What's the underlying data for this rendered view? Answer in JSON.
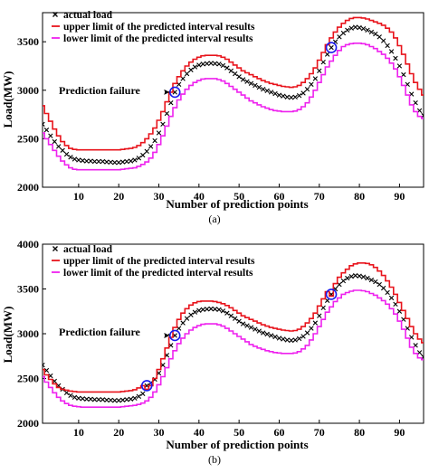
{
  "chart_data": [
    {
      "type": "line",
      "caption": "(a)",
      "xlabel": "Number of prediction points",
      "ylabel": "Load(MW)",
      "xlim": [
        1,
        96
      ],
      "ylim": [
        2000,
        3800
      ],
      "xticks": [
        10,
        20,
        30,
        40,
        50,
        60,
        70,
        80,
        90
      ],
      "yticks": [
        2000,
        2500,
        3000,
        3500
      ],
      "legend_position": "top-left",
      "annotation": "Prediction failure",
      "failure_points": [
        [
          34,
          2980
        ],
        [
          73,
          3440
        ]
      ],
      "series": [
        {
          "name": "actual load",
          "color": "#000000",
          "style": "x-markers",
          "values": [
            2650,
            2590,
            2530,
            2470,
            2420,
            2380,
            2340,
            2310,
            2290,
            2280,
            2275,
            2270,
            2270,
            2265,
            2265,
            2265,
            2260,
            2258,
            2255,
            2255,
            2260,
            2265,
            2270,
            2280,
            2300,
            2330,
            2370,
            2420,
            2480,
            2560,
            2650,
            2760,
            2870,
            2980,
            3060,
            3120,
            3170,
            3210,
            3240,
            3260,
            3270,
            3275,
            3278,
            3275,
            3270,
            3255,
            3230,
            3200,
            3170,
            3140,
            3110,
            3090,
            3070,
            3050,
            3030,
            3010,
            2995,
            2980,
            2965,
            2950,
            2940,
            2930,
            2925,
            2930,
            2945,
            2970,
            3010,
            3060,
            3120,
            3200,
            3290,
            3370,
            3440,
            3500,
            3550,
            3590,
            3620,
            3640,
            3650,
            3645,
            3635,
            3620,
            3600,
            3580,
            3550,
            3510,
            3460,
            3400,
            3330,
            3250,
            3160,
            3060,
            2960,
            2870,
            2790,
            2740
          ]
        },
        {
          "name": "upper limit of the predicted interval results",
          "color": "#e8141c",
          "style": "step",
          "values": [
            2840,
            2760,
            2680,
            2600,
            2530,
            2470,
            2430,
            2400,
            2390,
            2385,
            2385,
            2385,
            2385,
            2385,
            2385,
            2385,
            2385,
            2385,
            2385,
            2385,
            2390,
            2395,
            2400,
            2410,
            2430,
            2460,
            2500,
            2550,
            2610,
            2690,
            2780,
            2880,
            2980,
            3070,
            3140,
            3200,
            3250,
            3290,
            3320,
            3340,
            3355,
            3360,
            3360,
            3360,
            3355,
            3340,
            3320,
            3290,
            3260,
            3230,
            3200,
            3180,
            3160,
            3140,
            3120,
            3100,
            3085,
            3070,
            3060,
            3050,
            3040,
            3035,
            3030,
            3035,
            3050,
            3080,
            3120,
            3170,
            3230,
            3310,
            3390,
            3470,
            3540,
            3600,
            3650,
            3690,
            3720,
            3740,
            3750,
            3750,
            3745,
            3735,
            3720,
            3705,
            3690,
            3670,
            3640,
            3600,
            3540,
            3460,
            3370,
            3270,
            3170,
            3080,
            3010,
            2950
          ]
        },
        {
          "name": "lower limit of the predicted interval results",
          "color": "#ee22ee",
          "style": "step",
          "values": [
            2560,
            2500,
            2440,
            2380,
            2320,
            2270,
            2230,
            2200,
            2185,
            2180,
            2180,
            2180,
            2180,
            2180,
            2180,
            2180,
            2180,
            2180,
            2180,
            2180,
            2185,
            2190,
            2195,
            2200,
            2215,
            2235,
            2260,
            2300,
            2360,
            2440,
            2530,
            2630,
            2730,
            2820,
            2900,
            2960,
            3010,
            3050,
            3080,
            3100,
            3115,
            3120,
            3120,
            3120,
            3110,
            3095,
            3070,
            3040,
            3010,
            2980,
            2950,
            2920,
            2890,
            2870,
            2850,
            2830,
            2815,
            2800,
            2790,
            2785,
            2780,
            2780,
            2780,
            2785,
            2800,
            2830,
            2870,
            2930,
            3000,
            3080,
            3160,
            3240,
            3300,
            3360,
            3410,
            3450,
            3470,
            3480,
            3485,
            3485,
            3480,
            3470,
            3450,
            3430,
            3400,
            3370,
            3330,
            3280,
            3220,
            3140,
            3050,
            2950,
            2850,
            2780,
            2730,
            2710
          ]
        }
      ]
    },
    {
      "type": "line",
      "caption": "(b)",
      "xlabel": "Number of prediction points",
      "ylabel": "Load(MW)",
      "xlim": [
        1,
        96
      ],
      "ylim": [
        2000,
        4000
      ],
      "xticks": [
        10,
        20,
        30,
        40,
        50,
        60,
        70,
        80,
        90
      ],
      "yticks": [
        2000,
        2500,
        3000,
        3500,
        4000
      ],
      "legend_position": "top-left",
      "annotation": "Prediction failure",
      "failure_points": [
        [
          27,
          2420
        ],
        [
          34,
          2980
        ],
        [
          73,
          3440
        ]
      ],
      "series": [
        {
          "name": "actual load",
          "color": "#000000",
          "style": "x-markers",
          "values": [
            2650,
            2590,
            2530,
            2470,
            2420,
            2380,
            2340,
            2310,
            2290,
            2280,
            2275,
            2270,
            2270,
            2265,
            2265,
            2265,
            2260,
            2258,
            2255,
            2255,
            2260,
            2265,
            2270,
            2280,
            2300,
            2330,
            2420,
            2450,
            2490,
            2560,
            2650,
            2760,
            2870,
            2980,
            3060,
            3120,
            3170,
            3210,
            3240,
            3260,
            3270,
            3275,
            3278,
            3275,
            3270,
            3255,
            3230,
            3200,
            3170,
            3140,
            3110,
            3090,
            3070,
            3050,
            3030,
            3010,
            2995,
            2980,
            2965,
            2950,
            2940,
            2930,
            2925,
            2930,
            2945,
            2970,
            3010,
            3060,
            3120,
            3200,
            3290,
            3370,
            3440,
            3500,
            3550,
            3590,
            3620,
            3640,
            3650,
            3645,
            3635,
            3620,
            3600,
            3580,
            3550,
            3510,
            3460,
            3400,
            3330,
            3250,
            3160,
            3060,
            2960,
            2870,
            2790,
            2740
          ]
        },
        {
          "name": "upper limit of the predicted interval results",
          "color": "#e8141c",
          "style": "step",
          "values": [
            2600,
            2540,
            2490,
            2440,
            2400,
            2380,
            2370,
            2360,
            2355,
            2350,
            2350,
            2350,
            2350,
            2350,
            2350,
            2350,
            2350,
            2350,
            2350,
            2350,
            2355,
            2360,
            2365,
            2375,
            2395,
            2420,
            2380,
            2420,
            2500,
            2600,
            2720,
            2840,
            2960,
            3070,
            3160,
            3230,
            3280,
            3320,
            3345,
            3360,
            3365,
            3365,
            3365,
            3360,
            3350,
            3335,
            3315,
            3290,
            3260,
            3230,
            3200,
            3180,
            3160,
            3140,
            3120,
            3100,
            3085,
            3070,
            3060,
            3050,
            3040,
            3035,
            3030,
            3035,
            3050,
            3080,
            3120,
            3170,
            3230,
            3310,
            3390,
            3470,
            3420,
            3560,
            3630,
            3680,
            3720,
            3760,
            3780,
            3790,
            3790,
            3785,
            3770,
            3740,
            3700,
            3650,
            3590,
            3520,
            3440,
            3350,
            3260,
            3170,
            3080,
            3000,
            2940,
            2900
          ]
        },
        {
          "name": "lower limit of the predicted interval results",
          "color": "#ee22ee",
          "style": "step",
          "values": [
            2520,
            2460,
            2400,
            2340,
            2290,
            2250,
            2220,
            2200,
            2190,
            2185,
            2180,
            2180,
            2180,
            2180,
            2180,
            2180,
            2180,
            2180,
            2180,
            2180,
            2185,
            2190,
            2195,
            2200,
            2210,
            2225,
            2250,
            2290,
            2350,
            2430,
            2520,
            2620,
            2720,
            2810,
            2890,
            2950,
            3000,
            3040,
            3070,
            3090,
            3105,
            3110,
            3110,
            3110,
            3100,
            3085,
            3060,
            3030,
            3000,
            2970,
            2940,
            2910,
            2880,
            2860,
            2840,
            2825,
            2810,
            2800,
            2790,
            2785,
            2780,
            2780,
            2780,
            2785,
            2800,
            2830,
            2870,
            2930,
            3000,
            3080,
            3160,
            3240,
            3300,
            3360,
            3400,
            3440,
            3460,
            3475,
            3485,
            3485,
            3480,
            3470,
            3450,
            3430,
            3400,
            3370,
            3330,
            3280,
            3220,
            3140,
            3050,
            2950,
            2850,
            2780,
            2730,
            2710
          ]
        }
      ]
    }
  ]
}
